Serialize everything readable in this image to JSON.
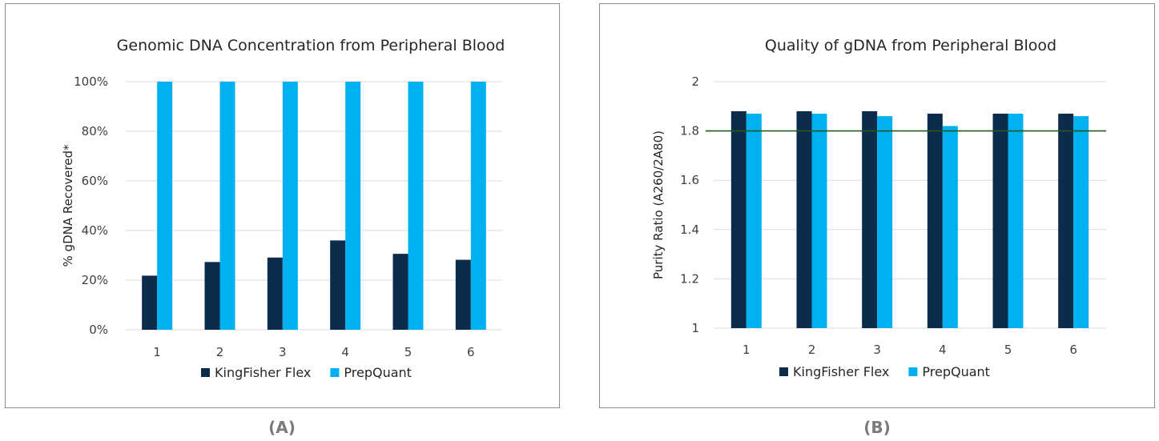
{
  "captions": [
    "(A)",
    "(B)"
  ],
  "chart_data": [
    {
      "type": "bar",
      "title": "Genomic DNA Concentration from Peripheral Blood",
      "xlabel": "",
      "ylabel": "% gDNA Recovered*",
      "categories": [
        "1",
        "2",
        "3",
        "4",
        "5",
        "6"
      ],
      "ylim": [
        0,
        100
      ],
      "yticks": [
        0,
        20,
        40,
        60,
        80,
        100
      ],
      "ytick_labels": [
        "0%",
        "20%",
        "40%",
        "60%",
        "80%",
        "100%"
      ],
      "grid": true,
      "legend_position": "bottom",
      "series": [
        {
          "name": "KingFisher Flex",
          "color": "#0d2c4c",
          "values": [
            21.8,
            27.3,
            29.1,
            36.0,
            30.6,
            28.2
          ]
        },
        {
          "name": "PrepQuant",
          "color": "#00b0f0",
          "values": [
            100,
            100,
            100,
            100,
            100,
            100
          ]
        }
      ]
    },
    {
      "type": "bar",
      "title": "Quality of gDNA from Peripheral Blood",
      "xlabel": "",
      "ylabel": "Purity Ratio (A260/2A80)",
      "categories": [
        "1",
        "2",
        "3",
        "4",
        "5",
        "6"
      ],
      "ylim": [
        1,
        2
      ],
      "yticks": [
        1,
        1.2,
        1.4,
        1.6,
        1.8,
        2
      ],
      "ytick_labels": [
        "1",
        "1.2",
        "1.4",
        "1.6",
        "1.8",
        "2"
      ],
      "grid": true,
      "legend_position": "bottom",
      "reference_line": {
        "value": 1.8,
        "color": "#1e5b1e"
      },
      "series": [
        {
          "name": "KingFisher Flex",
          "color": "#0d2c4c",
          "values": [
            1.88,
            1.88,
            1.88,
            1.87,
            1.87,
            1.87
          ]
        },
        {
          "name": "PrepQuant",
          "color": "#00b0f0",
          "values": [
            1.87,
            1.87,
            1.86,
            1.82,
            1.87,
            1.86
          ]
        }
      ]
    }
  ]
}
